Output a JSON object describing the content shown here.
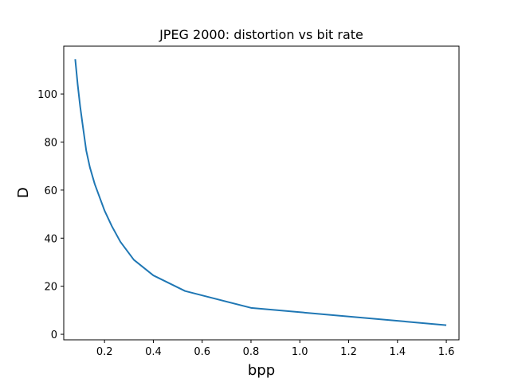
{
  "chart_data": {
    "type": "line",
    "title": "JPEG 2000: distortion vs bit rate",
    "xlabel": "bpp",
    "ylabel": "D",
    "xlim": [
      0.033,
      1.652
    ],
    "ylim": [
      -2.3,
      119.9
    ],
    "xticks": [
      0.2,
      0.4,
      0.6,
      0.8,
      1.0,
      1.2,
      1.4,
      1.6
    ],
    "xtick_labels": [
      "0.2",
      "0.4",
      "0.6",
      "0.8",
      "1.0",
      "1.2",
      "1.4",
      "1.6"
    ],
    "yticks": [
      0,
      20,
      40,
      60,
      80,
      100
    ],
    "ytick_labels": [
      "0",
      "20",
      "40",
      "60",
      "80",
      "100"
    ],
    "grid": false,
    "series": [
      {
        "color": "#1f77b4",
        "x": [
          0.08,
          0.09,
          0.1,
          0.11,
          0.125,
          0.14,
          0.16,
          0.18,
          0.2,
          0.23,
          0.265,
          0.32,
          0.4,
          0.53,
          0.8,
          1.6
        ],
        "y": [
          114.5,
          104.0,
          95.0,
          87.5,
          76.5,
          69.5,
          62.5,
          57.0,
          51.5,
          45.0,
          38.5,
          31.0,
          24.5,
          18.0,
          11.0,
          3.8
        ]
      }
    ]
  }
}
